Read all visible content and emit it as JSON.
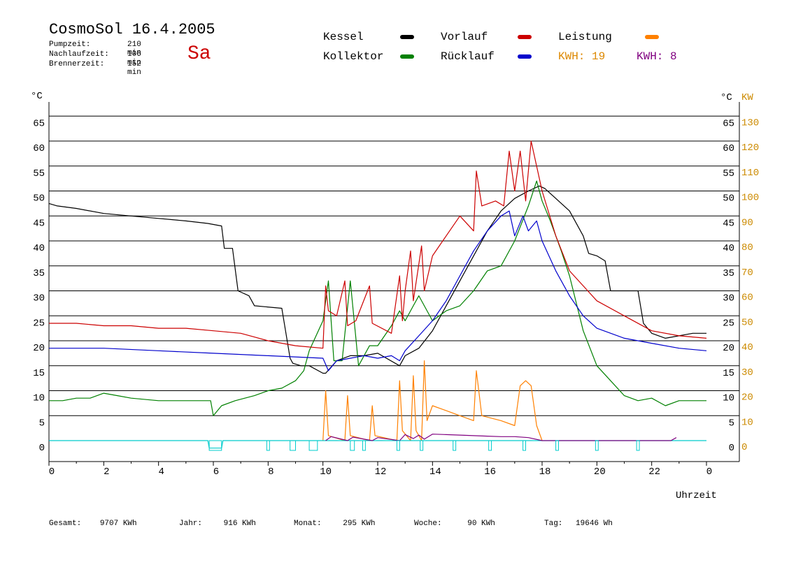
{
  "header": {
    "title": "CosmoSol 16.4.2005",
    "day": "Sa",
    "stats": [
      {
        "label": "Pumpzeit:",
        "value": "210 min"
      },
      {
        "label": "Nachlaufzeit:",
        "value": "106 min"
      },
      {
        "label": "Brennerzeit:",
        "value": "152 min"
      }
    ]
  },
  "legend": {
    "kessel": "Kessel",
    "kollektor": "Kollektor",
    "vorlauf": "Vorlauf",
    "ruecklauf": "Rücklauf",
    "leistung": "Leistung",
    "kwh1": "KWH: 19",
    "kwh2": "KWH: 8"
  },
  "axes": {
    "left_unit": "°C",
    "right_unit": "°C",
    "kw_unit": "KW",
    "xlabel": "Uhrzeit"
  },
  "footer": {
    "gesamt_label": "Gesamt:",
    "gesamt_value": "9707 KWh",
    "jahr_label": "Jahr:",
    "jahr_value": "916 KWh",
    "monat_label": "Monat:",
    "monat_value": "295 KWh",
    "woche_label": "Woche:",
    "woche_value": "90 KWh",
    "tag_label": "Tag:",
    "tag_value": "19646 Wh"
  },
  "colors": {
    "kessel": "#000000",
    "kollektor": "#008000",
    "vorlauf": "#cc0000",
    "ruecklauf": "#0000cc",
    "leistung": "#ff8000",
    "kwh2": "#800080",
    "pump": "#00cccc",
    "kw_axis": "#cc8a00"
  },
  "chart_data": {
    "type": "line",
    "xlim": [
      0,
      24
    ],
    "ylim": [
      0,
      65
    ],
    "y2lim": [
      0,
      130
    ],
    "x_ticks": [
      "0",
      "2",
      "4",
      "6",
      "8",
      "10",
      "12",
      "14",
      "16",
      "18",
      "20",
      "22",
      "0"
    ],
    "y_ticks": [
      "0",
      "5",
      "10",
      "15",
      "20",
      "25",
      "30",
      "35",
      "40",
      "45",
      "50",
      "55",
      "60",
      "65"
    ],
    "y_ticks_right": [
      "0",
      "5",
      "10",
      "15",
      "20",
      "25",
      "30",
      "35",
      "40",
      "45",
      "50",
      "55",
      "60",
      "65"
    ],
    "y2_ticks": [
      "0",
      "10",
      "20",
      "30",
      "40",
      "50",
      "60",
      "70",
      "80",
      "90",
      "100",
      "110",
      "120",
      "130"
    ],
    "series": [
      {
        "name": "Kessel",
        "color": "#000000",
        "x": [
          0,
          0.3,
          1,
          2,
          3,
          4,
          5,
          5.8,
          6.3,
          6.4,
          6.7,
          6.9,
          7.3,
          7.5,
          8.5,
          8.8,
          8.9,
          9.2,
          9.5,
          10.0,
          10.1,
          10.5,
          11.0,
          11.5,
          12.0,
          12.8,
          13.0,
          13.5,
          14.0,
          14.5,
          15.0,
          15.5,
          16.0,
          16.5,
          17.0,
          17.5,
          17.9,
          18.1,
          18.5,
          19.0,
          19.5,
          19.7,
          20.0,
          20.3,
          20.5,
          21.5,
          21.7,
          22.0,
          22.5,
          23.0,
          23.5,
          24.0
        ],
        "y": [
          47.5,
          47,
          46.5,
          45.5,
          45,
          44.5,
          44,
          43.5,
          43,
          38.5,
          38.5,
          30,
          29,
          27,
          26.5,
          16.5,
          15.5,
          15,
          15,
          13.5,
          13.5,
          16,
          17,
          17,
          17.5,
          15,
          17,
          18.5,
          22,
          27,
          32,
          37,
          42,
          46,
          48.5,
          50,
          51,
          50.5,
          48.5,
          46,
          41,
          37.5,
          37,
          36,
          30,
          30,
          23.5,
          21.5,
          20.5,
          21,
          21.5,
          21.5
        ]
      },
      {
        "name": "Kollektor",
        "color": "#008000",
        "x": [
          0,
          0.5,
          1,
          1.5,
          2,
          2.5,
          3,
          4,
          5,
          5.5,
          5.9,
          6.0,
          6.3,
          6.8,
          7.5,
          8.0,
          8.5,
          9.0,
          9.3,
          9.5,
          10.0,
          10.2,
          10.4,
          10.7,
          11.0,
          11.3,
          11.7,
          12.0,
          12.5,
          12.8,
          13.0,
          13.3,
          13.5,
          14.0,
          14.5,
          15.0,
          15.5,
          16.0,
          16.5,
          17.0,
          17.5,
          17.8,
          18.0,
          18.3,
          18.7,
          19.0,
          19.5,
          20.0,
          20.5,
          21.0,
          21.5,
          22.0,
          22.5,
          23.0,
          23.5,
          24.0
        ],
        "y": [
          8,
          8,
          8.5,
          8.5,
          9.5,
          9,
          8.5,
          8,
          8,
          8,
          8,
          5,
          7,
          8,
          9,
          10,
          10.5,
          12,
          14,
          18,
          24,
          32,
          16,
          16,
          32,
          15,
          19,
          19,
          23,
          26,
          24,
          27,
          29,
          24,
          26,
          27,
          30,
          34,
          35,
          40,
          47,
          52,
          48,
          44,
          38,
          33,
          22,
          15,
          12,
          9,
          8,
          8.5,
          7,
          8,
          8,
          8
        ]
      },
      {
        "name": "Vorlauf",
        "color": "#cc0000",
        "x": [
          0,
          1,
          2,
          3,
          4,
          5,
          6,
          7,
          8,
          9,
          10,
          10.1,
          10.2,
          10.5,
          10.8,
          10.9,
          11.2,
          11.7,
          11.8,
          12.5,
          12.8,
          12.9,
          13.0,
          13.2,
          13.3,
          13.6,
          13.7,
          14.0,
          14.5,
          15.0,
          15.5,
          15.6,
          15.8,
          16.3,
          16.6,
          16.8,
          17.0,
          17.2,
          17.4,
          17.6,
          18.0,
          18.5,
          19.0,
          19.5,
          20.0,
          21.0,
          22.0,
          23.0,
          24.0
        ],
        "y": [
          23.5,
          23.5,
          23,
          23,
          22.5,
          22.5,
          22,
          21.5,
          20,
          19,
          18.5,
          31,
          26,
          25,
          32,
          23,
          24,
          31,
          23.5,
          21.5,
          33,
          24,
          30,
          38,
          28,
          39,
          30,
          37,
          41,
          45,
          42,
          54,
          47,
          48,
          47,
          58,
          50,
          58,
          48,
          60,
          50,
          41,
          34,
          31,
          28,
          25,
          22,
          21,
          20.5
        ]
      },
      {
        "name": "Rücklauf",
        "color": "#0000cc",
        "x": [
          0,
          2,
          4,
          6,
          8,
          10,
          10.2,
          10.5,
          11.0,
          11.5,
          12.0,
          12.5,
          12.8,
          13.0,
          13.5,
          14.0,
          14.5,
          15.0,
          15.5,
          16.0,
          16.5,
          16.8,
          17.0,
          17.3,
          17.5,
          17.8,
          18.0,
          18.5,
          19.0,
          19.5,
          20.0,
          21.0,
          22.0,
          23.0,
          24.0
        ],
        "y": [
          18.5,
          18.5,
          18,
          17.5,
          17,
          16.5,
          14,
          16,
          16.5,
          17,
          16.5,
          17,
          16,
          18,
          21,
          24,
          28,
          33,
          38,
          42,
          45,
          46,
          41,
          45,
          42,
          44,
          40,
          34,
          29,
          25,
          22.5,
          20.5,
          19.5,
          18.5,
          18
        ]
      },
      {
        "name": "Leistung",
        "color": "#ff8000",
        "x": [
          10.0,
          10.1,
          10.2,
          10.8,
          10.9,
          11.0,
          11.7,
          11.8,
          11.9,
          12.7,
          12.8,
          12.9,
          13.2,
          13.3,
          13.4,
          13.6,
          13.7,
          13.8,
          14.0,
          14.5,
          15.0,
          15.5,
          15.6,
          15.8,
          16.5,
          17.0,
          17.2,
          17.4,
          17.6,
          17.8,
          18.0
        ],
        "y": [
          0,
          10,
          1,
          0,
          9,
          1,
          0,
          7,
          1,
          0,
          12,
          2,
          0,
          13,
          2,
          0,
          16,
          4,
          7,
          6,
          5,
          4,
          14,
          5,
          4,
          3,
          11,
          12,
          11,
          3,
          0
        ]
      },
      {
        "name": "Pumpe",
        "color": "#00cccc",
        "x": [
          0,
          5.8,
          5.85,
          6.3,
          6.35,
          24
        ],
        "y": [
          0,
          0,
          -1.5,
          -1.5,
          0,
          0
        ]
      }
    ]
  }
}
